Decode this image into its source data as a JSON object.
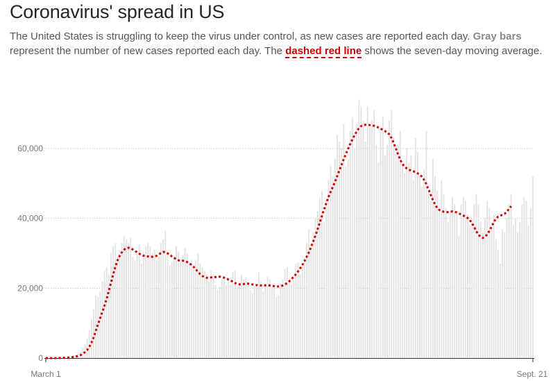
{
  "header": {
    "title": "Coronavirus' spread in US",
    "subtitle_parts": {
      "p1": "The United States is struggling to keep the virus under control, as new cases are reported each day. ",
      "gray_bars": "Gray bars",
      "p2": " represent the number of new cases reported each day. The ",
      "red_line": "dashed red line",
      "p3": " shows the seven-day moving average."
    }
  },
  "colors": {
    "bars": "#e3e3e3",
    "line": "#cc0000",
    "grid": "#c8c8c8",
    "axis": "#333333"
  },
  "chart_data": {
    "type": "bar",
    "title": "Coronavirus' spread in US",
    "xlabel": "",
    "ylabel": "",
    "x_tick_labels": [
      "March 1",
      "Sept. 21"
    ],
    "y_ticks": [
      0,
      20000,
      40000,
      60000
    ],
    "y_tick_labels": [
      "0",
      "20,000",
      "40,000",
      "60,000"
    ],
    "ylim": [
      0,
      80000
    ],
    "grid": true,
    "series": [
      {
        "name": "Gray bars",
        "type": "bar",
        "values": [
          0,
          0,
          0,
          0,
          0,
          100,
          100,
          150,
          200,
          200,
          300,
          400,
          500,
          600,
          900,
          1200,
          1700,
          2800,
          4000,
          5500,
          8000,
          11000,
          14000,
          18000,
          17500,
          19000,
          22000,
          25000,
          26000,
          24000,
          30000,
          32000,
          33000,
          29000,
          31000,
          33000,
          35000,
          34000,
          33000,
          34500,
          29000,
          28000,
          30000,
          32500,
          27000,
          29000,
          32000,
          33000,
          32000,
          30000,
          31000,
          28000,
          29000,
          33000,
          34000,
          36500,
          30000,
          26500,
          27500,
          29000,
          32000,
          30500,
          28000,
          29500,
          31500,
          30000,
          27500,
          28000,
          25500,
          28000,
          30000,
          27000,
          26000,
          25000,
          24000,
          22000,
          25000,
          24000,
          21000,
          19500,
          20500,
          22500,
          23500,
          21000,
          22500,
          21000,
          24500,
          25000,
          20500,
          21000,
          24000,
          22500,
          23000,
          21500,
          19500,
          18500,
          20500,
          21000,
          24500,
          22000,
          19000,
          21500,
          23500,
          22500,
          20000,
          21000,
          17500,
          18000,
          21500,
          22500,
          25500,
          26000,
          22000,
          21000,
          22500,
          27000,
          27500,
          24000,
          26000,
          28500,
          33000,
          37000,
          33000,
          36000,
          40000,
          42000,
          46000,
          48000,
          39000,
          45000,
          51000,
          55000,
          52000,
          57000,
          64000,
          62000,
          60000,
          67000,
          55000,
          57000,
          65000,
          69000,
          60000,
          67000,
          74000,
          72000,
          68000,
          62000,
          72000,
          66000,
          68000,
          71000,
          61000,
          56000,
          65000,
          69000,
          58000,
          61000,
          68000,
          71000,
          63000,
          58000,
          61000,
          65000,
          55000,
          53000,
          60000,
          56000,
          58000,
          51000,
          63000,
          59000,
          52000,
          49000,
          54000,
          65000,
          47000,
          45000,
          57000,
          52000,
          48000,
          42000,
          51000,
          47000,
          43000,
          39000,
          42000,
          46000,
          44000,
          42000,
          35000,
          44000,
          46000,
          45000,
          41000,
          38000,
          40000,
          44000,
          47000,
          44000,
          39000,
          36000,
          40000,
          45000,
          43000,
          37000,
          41000,
          34000,
          31000,
          27000,
          37000,
          36000,
          40000,
          44000,
          47000,
          38000,
          40000,
          36000,
          39000,
          44000,
          46000,
          45000,
          38000,
          43000,
          52000
        ]
      },
      {
        "name": "dashed red line",
        "type": "line",
        "values": [
          0,
          0,
          0,
          0,
          0,
          20,
          40,
          60,
          80,
          100,
          140,
          190,
          260,
          360,
          480,
          640,
          860,
          1200,
          1700,
          2300,
          3200,
          4400,
          5900,
          7800,
          9700,
          11400,
          13200,
          15000,
          17000,
          19300,
          21600,
          24000,
          26200,
          28000,
          29300,
          30300,
          31000,
          31500,
          31600,
          31400,
          31100,
          30700,
          30300,
          29900,
          29600,
          29300,
          29200,
          29100,
          29000,
          29000,
          29100,
          29300,
          29700,
          30100,
          30400,
          30300,
          30000,
          29600,
          29100,
          28700,
          28300,
          28000,
          27900,
          27900,
          27800,
          27500,
          27100,
          26700,
          26100,
          25400,
          24700,
          24000,
          23500,
          23200,
          23000,
          23000,
          23100,
          23200,
          23200,
          23300,
          23300,
          23200,
          23000,
          22800,
          22500,
          22200,
          21900,
          21500,
          21200,
          21100,
          21100,
          21200,
          21300,
          21300,
          21200,
          21100,
          21000,
          20900,
          20800,
          20800,
          20800,
          20800,
          20800,
          20800,
          20700,
          20600,
          20500,
          20500,
          20600,
          20800,
          21100,
          21500,
          22000,
          22600,
          23300,
          24000,
          24800,
          25700,
          26700,
          27800,
          29000,
          30300,
          31800,
          33400,
          35100,
          36900,
          38800,
          40700,
          42600,
          44400,
          46100,
          47600,
          49000,
          50500,
          52100,
          53700,
          55300,
          56900,
          58400,
          59900,
          61300,
          62600,
          63800,
          64900,
          65800,
          66400,
          66700,
          66800,
          66800,
          66700,
          66600,
          66500,
          66300,
          66000,
          65700,
          65300,
          65000,
          64600,
          64000,
          63000,
          61600,
          60000,
          58300,
          56800,
          55600,
          54800,
          54300,
          53900,
          53700,
          53500,
          53200,
          52900,
          52500,
          51900,
          51000,
          49800,
          48300,
          46800,
          45300,
          44000,
          43000,
          42400,
          42100,
          41900,
          41800,
          41800,
          41900,
          42000,
          41900,
          41700,
          41400,
          41100,
          40800,
          40500,
          40100,
          39500,
          38600,
          37500,
          36300,
          35300,
          34700,
          34400,
          34700,
          35400,
          36400,
          37600,
          38900,
          39900,
          40500,
          40800,
          41000,
          41300,
          41900,
          42700,
          43500
        ]
      }
    ]
  }
}
